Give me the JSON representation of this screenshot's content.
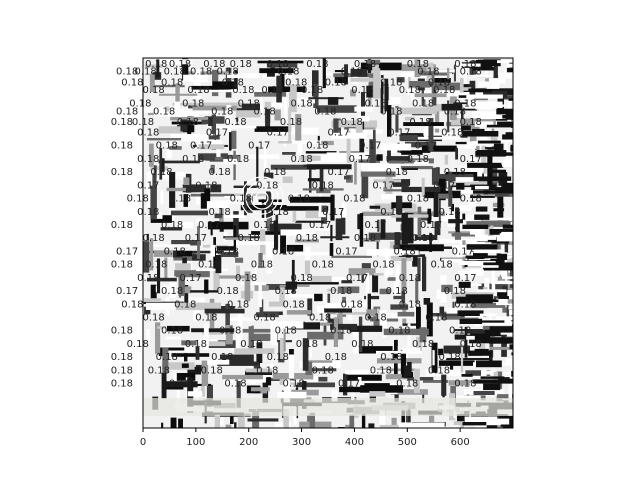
{
  "chart_data": {
    "type": "heatmap",
    "x_axis": {
      "ticks": [
        0,
        100,
        200,
        300,
        400,
        500,
        600
      ],
      "range": [
        0,
        700
      ]
    },
    "y_axis": {
      "range": [
        0,
        700
      ],
      "ticks_visible": false
    },
    "grid": false,
    "annotation_values": [
      "0.17",
      "0.18"
    ],
    "annotations": [
      {
        "x": 25,
        "y": 10,
        "t": "0.18"
      },
      {
        "x": 70,
        "y": 10,
        "t": "0.18"
      },
      {
        "x": 135,
        "y": 10,
        "t": "0.18"
      },
      {
        "x": 185,
        "y": 10,
        "t": "0.18"
      },
      {
        "x": 255,
        "y": 10,
        "t": "0.18"
      },
      {
        "x": 330,
        "y": 10,
        "t": "0.18"
      },
      {
        "x": 420,
        "y": 10,
        "t": "0.18"
      },
      {
        "x": 520,
        "y": 10,
        "t": "0.18"
      },
      {
        "x": 610,
        "y": 10,
        "t": "0.18"
      },
      {
        "x": -30,
        "y": 25,
        "t": "0.18"
      },
      {
        "x": 5,
        "y": 25,
        "t": "0.18"
      },
      {
        "x": 60,
        "y": 25,
        "t": "0.18"
      },
      {
        "x": 110,
        "y": 25,
        "t": "0.18"
      },
      {
        "x": 160,
        "y": 25,
        "t": "0.18"
      },
      {
        "x": 275,
        "y": 25,
        "t": "0.18"
      },
      {
        "x": 395,
        "y": 25,
        "t": "0.18"
      },
      {
        "x": 540,
        "y": 25,
        "t": "0.18"
      },
      {
        "x": 620,
        "y": 25,
        "t": "0.18"
      },
      {
        "x": -20,
        "y": 45,
        "t": "0.18"
      },
      {
        "x": 55,
        "y": 45,
        "t": "0.18"
      },
      {
        "x": 170,
        "y": 45,
        "t": "0.18"
      },
      {
        "x": 290,
        "y": 45,
        "t": "0.18"
      },
      {
        "x": 365,
        "y": 45,
        "t": "0.18"
      },
      {
        "x": 470,
        "y": 45,
        "t": "0.18"
      },
      {
        "x": 560,
        "y": 45,
        "t": "0.18"
      },
      {
        "x": 20,
        "y": 60,
        "t": "0.18"
      },
      {
        "x": 105,
        "y": 60,
        "t": "0.18"
      },
      {
        "x": 190,
        "y": 60,
        "t": "0.18"
      },
      {
        "x": 245,
        "y": 60,
        "t": "0.18"
      },
      {
        "x": 320,
        "y": 60,
        "t": "0.18"
      },
      {
        "x": 415,
        "y": 60,
        "t": "0.18"
      },
      {
        "x": 505,
        "y": 60,
        "t": "0.18"
      },
      {
        "x": 570,
        "y": 60,
        "t": "0.18"
      },
      {
        "x": -5,
        "y": 85,
        "t": "0.18"
      },
      {
        "x": 95,
        "y": 85,
        "t": "0.18"
      },
      {
        "x": 200,
        "y": 85,
        "t": "0.18"
      },
      {
        "x": 300,
        "y": 85,
        "t": "0.18"
      },
      {
        "x": 440,
        "y": 85,
        "t": "0.18"
      },
      {
        "x": 530,
        "y": 85,
        "t": "0.18"
      },
      {
        "x": 610,
        "y": 85,
        "t": "0.18"
      },
      {
        "x": -30,
        "y": 100,
        "t": "0.18"
      },
      {
        "x": 40,
        "y": 100,
        "t": "0.18"
      },
      {
        "x": 150,
        "y": 100,
        "t": "0.18"
      },
      {
        "x": 230,
        "y": 100,
        "t": "0.18"
      },
      {
        "x": 345,
        "y": 100,
        "t": "0.18"
      },
      {
        "x": 470,
        "y": 100,
        "t": "0.18"
      },
      {
        "x": 590,
        "y": 100,
        "t": "0.18"
      },
      {
        "x": -40,
        "y": 120,
        "t": "0.18"
      },
      {
        "x": 0,
        "y": 120,
        "t": "0.18"
      },
      {
        "x": 85,
        "y": 120,
        "t": "0.18"
      },
      {
        "x": 175,
        "y": 120,
        "t": "0.18"
      },
      {
        "x": 280,
        "y": 120,
        "t": "0.18"
      },
      {
        "x": 395,
        "y": 120,
        "t": "0.18"
      },
      {
        "x": 525,
        "y": 120,
        "t": "0.18"
      },
      {
        "x": 620,
        "y": 120,
        "t": "0.18"
      },
      {
        "x": 10,
        "y": 140,
        "t": "0.18"
      },
      {
        "x": 140,
        "y": 140,
        "t": "0.17"
      },
      {
        "x": 255,
        "y": 140,
        "t": "0.17"
      },
      {
        "x": 370,
        "y": 140,
        "t": "0.17"
      },
      {
        "x": 485,
        "y": 140,
        "t": "0.17"
      },
      {
        "x": 585,
        "y": 140,
        "t": "0.18"
      },
      {
        "x": -40,
        "y": 165,
        "t": "0.18"
      },
      {
        "x": 45,
        "y": 165,
        "t": "0.18"
      },
      {
        "x": 110,
        "y": 165,
        "t": "0.17"
      },
      {
        "x": 220,
        "y": 165,
        "t": "0.17"
      },
      {
        "x": 330,
        "y": 165,
        "t": "0.18"
      },
      {
        "x": 430,
        "y": 165,
        "t": "0.17"
      },
      {
        "x": 535,
        "y": 165,
        "t": "0.17"
      },
      {
        "x": 10,
        "y": 190,
        "t": "0.18"
      },
      {
        "x": 95,
        "y": 190,
        "t": "0.18"
      },
      {
        "x": 180,
        "y": 190,
        "t": "0.18"
      },
      {
        "x": 300,
        "y": 190,
        "t": "0.18"
      },
      {
        "x": 410,
        "y": 190,
        "t": "0.17"
      },
      {
        "x": 520,
        "y": 190,
        "t": "0.18"
      },
      {
        "x": 620,
        "y": 190,
        "t": "0.17"
      },
      {
        "x": -40,
        "y": 215,
        "t": "0.18"
      },
      {
        "x": 35,
        "y": 215,
        "t": "0.18"
      },
      {
        "x": 145,
        "y": 215,
        "t": "0.18"
      },
      {
        "x": 250,
        "y": 215,
        "t": "0.18"
      },
      {
        "x": 370,
        "y": 215,
        "t": "0.17"
      },
      {
        "x": 480,
        "y": 215,
        "t": "0.18"
      },
      {
        "x": 590,
        "y": 215,
        "t": "0.18"
      },
      {
        "x": 10,
        "y": 240,
        "t": "0.17"
      },
      {
        "x": 120,
        "y": 240,
        "t": "0.18"
      },
      {
        "x": 235,
        "y": 240,
        "t": "0.18"
      },
      {
        "x": 340,
        "y": 240,
        "t": "0.18"
      },
      {
        "x": 455,
        "y": 240,
        "t": "0.17"
      },
      {
        "x": 570,
        "y": 240,
        "t": "0.17"
      },
      {
        "x": -10,
        "y": 265,
        "t": "0.18"
      },
      {
        "x": 70,
        "y": 265,
        "t": "0.18"
      },
      {
        "x": 185,
        "y": 265,
        "t": "0.18"
      },
      {
        "x": 295,
        "y": 265,
        "t": "0.18"
      },
      {
        "x": 400,
        "y": 265,
        "t": "0.18"
      },
      {
        "x": 520,
        "y": 265,
        "t": "0.18"
      },
      {
        "x": 620,
        "y": 265,
        "t": "0.18"
      },
      {
        "x": 10,
        "y": 290,
        "t": "0.18"
      },
      {
        "x": 145,
        "y": 290,
        "t": "0.18"
      },
      {
        "x": 255,
        "y": 290,
        "t": "0.18"
      },
      {
        "x": 360,
        "y": 290,
        "t": "0.17"
      },
      {
        "x": 470,
        "y": 290,
        "t": "0.18"
      },
      {
        "x": 580,
        "y": 290,
        "t": "0.18"
      },
      {
        "x": -40,
        "y": 315,
        "t": "0.18"
      },
      {
        "x": 55,
        "y": 315,
        "t": "0.18"
      },
      {
        "x": 125,
        "y": 315,
        "t": "0.17"
      },
      {
        "x": 230,
        "y": 315,
        "t": "0.17"
      },
      {
        "x": 335,
        "y": 315,
        "t": "0.17"
      },
      {
        "x": 440,
        "y": 315,
        "t": "0.17"
      },
      {
        "x": 545,
        "y": 315,
        "t": "0.17"
      },
      {
        "x": 20,
        "y": 340,
        "t": "0.18"
      },
      {
        "x": 100,
        "y": 340,
        "t": "0.17"
      },
      {
        "x": 200,
        "y": 340,
        "t": "0.18"
      },
      {
        "x": 310,
        "y": 340,
        "t": "0.18"
      },
      {
        "x": 420,
        "y": 340,
        "t": "0.18"
      },
      {
        "x": 530,
        "y": 340,
        "t": "0.18"
      },
      {
        "x": -30,
        "y": 365,
        "t": "0.17"
      },
      {
        "x": 60,
        "y": 365,
        "t": "0.18"
      },
      {
        "x": 160,
        "y": 365,
        "t": "0.18"
      },
      {
        "x": 265,
        "y": 365,
        "t": "0.18"
      },
      {
        "x": 385,
        "y": 365,
        "t": "0.17"
      },
      {
        "x": 495,
        "y": 365,
        "t": "0.18"
      },
      {
        "x": 605,
        "y": 365,
        "t": "0.17"
      },
      {
        "x": -40,
        "y": 390,
        "t": "0.18"
      },
      {
        "x": 25,
        "y": 390,
        "t": "0.18"
      },
      {
        "x": 125,
        "y": 390,
        "t": "0.18"
      },
      {
        "x": 225,
        "y": 390,
        "t": "0.18"
      },
      {
        "x": 340,
        "y": 390,
        "t": "0.18"
      },
      {
        "x": 455,
        "y": 390,
        "t": "0.18"
      },
      {
        "x": 565,
        "y": 390,
        "t": "0.18"
      },
      {
        "x": 10,
        "y": 415,
        "t": "0.18"
      },
      {
        "x": 90,
        "y": 415,
        "t": "0.17"
      },
      {
        "x": 195,
        "y": 415,
        "t": "0.18"
      },
      {
        "x": 300,
        "y": 415,
        "t": "0.18"
      },
      {
        "x": 405,
        "y": 415,
        "t": "0.17"
      },
      {
        "x": 505,
        "y": 415,
        "t": "0.18"
      },
      {
        "x": 610,
        "y": 415,
        "t": "0.17"
      },
      {
        "x": -30,
        "y": 440,
        "t": "0.17"
      },
      {
        "x": 55,
        "y": 440,
        "t": "0.18"
      },
      {
        "x": 160,
        "y": 440,
        "t": "0.18"
      },
      {
        "x": 270,
        "y": 440,
        "t": "0.18"
      },
      {
        "x": 375,
        "y": 440,
        "t": "0.18"
      },
      {
        "x": 480,
        "y": 440,
        "t": "0.18"
      },
      {
        "x": 590,
        "y": 440,
        "t": "0.18"
      },
      {
        "x": -20,
        "y": 465,
        "t": "0.18"
      },
      {
        "x": 80,
        "y": 465,
        "t": "0.18"
      },
      {
        "x": 180,
        "y": 465,
        "t": "0.18"
      },
      {
        "x": 285,
        "y": 465,
        "t": "0.18"
      },
      {
        "x": 395,
        "y": 465,
        "t": "0.18"
      },
      {
        "x": 505,
        "y": 465,
        "t": "0.18"
      },
      {
        "x": 610,
        "y": 465,
        "t": "0.18"
      },
      {
        "x": 20,
        "y": 490,
        "t": "0.18"
      },
      {
        "x": 120,
        "y": 490,
        "t": "0.18"
      },
      {
        "x": 230,
        "y": 490,
        "t": "0.18"
      },
      {
        "x": 335,
        "y": 490,
        "t": "0.18"
      },
      {
        "x": 440,
        "y": 490,
        "t": "0.18"
      },
      {
        "x": 555,
        "y": 490,
        "t": "0.18"
      },
      {
        "x": -40,
        "y": 515,
        "t": "0.18"
      },
      {
        "x": 55,
        "y": 515,
        "t": "0.18"
      },
      {
        "x": 165,
        "y": 515,
        "t": "0.18"
      },
      {
        "x": 270,
        "y": 515,
        "t": "0.18"
      },
      {
        "x": 375,
        "y": 515,
        "t": "0.18"
      },
      {
        "x": 485,
        "y": 515,
        "t": "0.18"
      },
      {
        "x": 600,
        "y": 515,
        "t": "0.18"
      },
      {
        "x": -10,
        "y": 540,
        "t": "0.18"
      },
      {
        "x": 100,
        "y": 540,
        "t": "0.18"
      },
      {
        "x": 205,
        "y": 540,
        "t": "0.18"
      },
      {
        "x": 310,
        "y": 540,
        "t": "0.18"
      },
      {
        "x": 415,
        "y": 540,
        "t": "0.18"
      },
      {
        "x": 530,
        "y": 540,
        "t": "0.18"
      },
      {
        "x": 620,
        "y": 540,
        "t": "0.18"
      },
      {
        "x": -40,
        "y": 565,
        "t": "0.18"
      },
      {
        "x": 45,
        "y": 565,
        "t": "0.18"
      },
      {
        "x": 150,
        "y": 565,
        "t": "0.18"
      },
      {
        "x": 255,
        "y": 565,
        "t": "0.18"
      },
      {
        "x": 365,
        "y": 565,
        "t": "0.18"
      },
      {
        "x": 470,
        "y": 565,
        "t": "0.18"
      },
      {
        "x": 580,
        "y": 565,
        "t": "0.18"
      },
      {
        "x": -40,
        "y": 590,
        "t": "0.18"
      },
      {
        "x": 30,
        "y": 590,
        "t": "0.18"
      },
      {
        "x": 130,
        "y": 590,
        "t": "0.18"
      },
      {
        "x": 235,
        "y": 590,
        "t": "0.18"
      },
      {
        "x": 340,
        "y": 590,
        "t": "0.18"
      },
      {
        "x": 450,
        "y": 590,
        "t": "0.18"
      },
      {
        "x": 560,
        "y": 590,
        "t": "0.18"
      },
      {
        "x": -40,
        "y": 615,
        "t": "0.18"
      },
      {
        "x": 70,
        "y": 615,
        "t": "0.18"
      },
      {
        "x": 175,
        "y": 615,
        "t": "0.18"
      },
      {
        "x": 285,
        "y": 615,
        "t": "0.18"
      },
      {
        "x": 390,
        "y": 615,
        "t": "0.17"
      },
      {
        "x": 500,
        "y": 615,
        "t": "0.18"
      },
      {
        "x": 610,
        "y": 615,
        "t": "0.18"
      }
    ]
  }
}
